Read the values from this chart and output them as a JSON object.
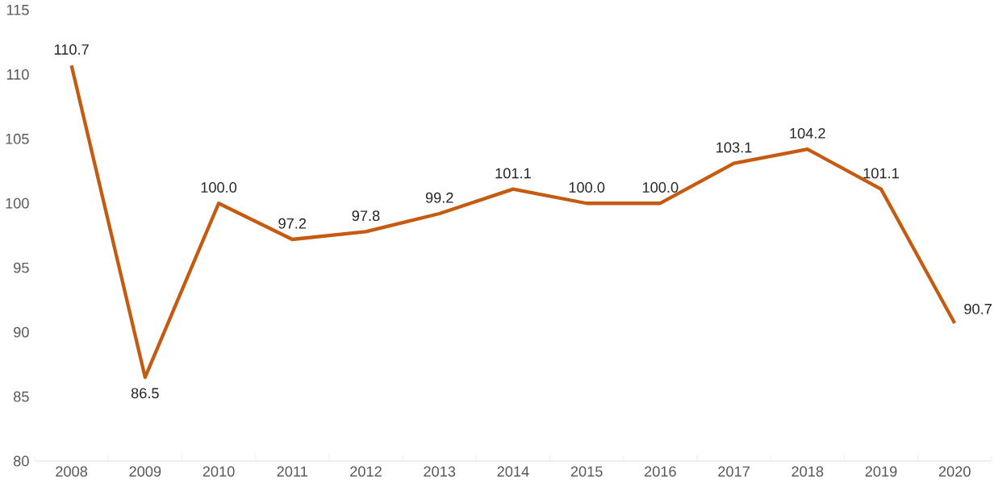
{
  "chart_data": {
    "type": "line",
    "categories": [
      "2008",
      "2009",
      "2010",
      "2011",
      "2012",
      "2013",
      "2014",
      "2015",
      "2016",
      "2017",
      "2018",
      "2019",
      "2020"
    ],
    "series": [
      {
        "color": "#c55a11",
        "values": [
          110.7,
          86.5,
          100.0,
          97.2,
          97.8,
          99.2,
          101.1,
          100.0,
          100.0,
          103.1,
          104.2,
          101.1,
          90.7
        ]
      }
    ],
    "value_labels": [
      "110.7",
      "86.5",
      "100.0",
      "97.2",
      "97.8",
      "99.2",
      "101.1",
      "100.0",
      "100.0",
      "103.1",
      "104.2",
      "101.1",
      "90.7"
    ],
    "ylim": [
      80,
      115
    ],
    "yticks": [
      80,
      85,
      90,
      95,
      100,
      105,
      110,
      115
    ],
    "grid": false,
    "marker": "none",
    "line_style": "solid"
  }
}
